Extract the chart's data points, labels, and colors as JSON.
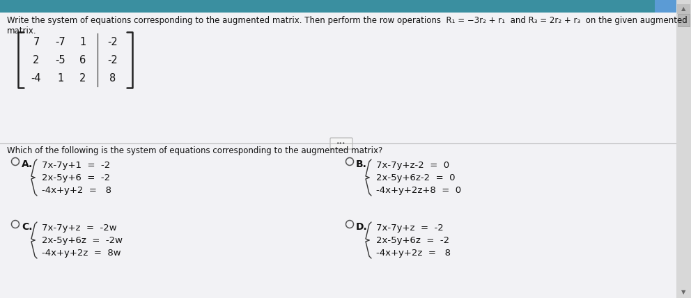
{
  "bg_color": "#e8e8e8",
  "top_bg": "#f0eff4",
  "bottom_bg": "#e8e8f0",
  "header_line1": "Write the system of equations corresponding to the augmented matrix. Then perform the row operations  R₁ = −3r₂ + r₁  and R₃ = 2r₂ + r₃  on the given augmented",
  "header_line2": "matrix.",
  "matrix": [
    [
      7,
      -7,
      1,
      -2
    ],
    [
      2,
      -5,
      6,
      -2
    ],
    [
      -4,
      1,
      2,
      8
    ]
  ],
  "question_text": "Which of the following is the system of equations corresponding to the augmented matrix?",
  "option_A_label": "A.",
  "option_A_lines": [
    "7x-7y+1  =  -2",
    "2x-5y+6  =  -2",
    "-4x+y+2  =   8"
  ],
  "option_B_label": "B.",
  "option_B_lines": [
    "7x-7y+z-2  =  0",
    "2x-5y+6z-2  =  0",
    "-4x+y+2z+8  =  0"
  ],
  "option_C_label": "C.",
  "option_C_lines": [
    "7x-7y+z  =  -2w",
    "2x-5y+6z  =  -2w",
    "-4x+y+2z  =  8w"
  ],
  "option_D_label": "D.",
  "option_D_lines": [
    "7x-7y+z  =  -2",
    "2x-5y+6z  =  -2",
    "-4x+y+2z  =   8"
  ],
  "text_color": "#111111",
  "light_text": "#333333",
  "radio_color": "#555555",
  "teal_bar_color": "#3a8fa0",
  "top_right_btn_color": "#5b9bd5",
  "font_size_header": 8.5,
  "font_size_matrix": 10.5,
  "font_size_question": 8.5,
  "font_size_option": 9.5,
  "font_size_label": 10,
  "divider_color": "#bbbbbb",
  "scrollbar_bg": "#d0d0d0",
  "scrollbar_handle": "#999999"
}
